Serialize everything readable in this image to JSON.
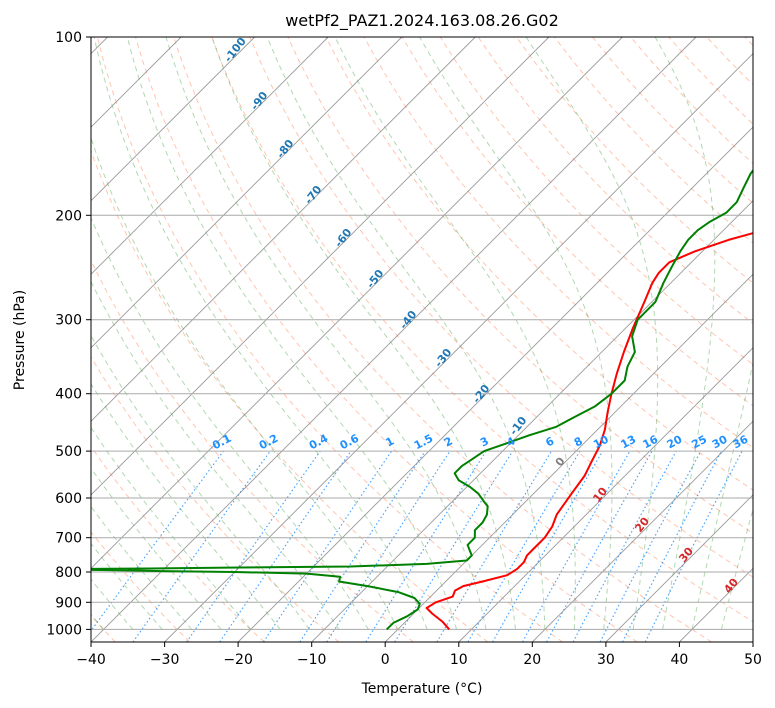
{
  "chart_data": {
    "type": "line",
    "title": "wetPf2_PAZ1.2024.163.08.26.G02",
    "xlabel": "Temperature (°C)",
    "ylabel": "Pressure (hPa)",
    "xlim": [
      -40,
      50
    ],
    "ylim": [
      1050,
      100
    ],
    "y_scale": "log",
    "grid": true,
    "x_ticks": [
      -40,
      -30,
      -20,
      -10,
      0,
      10,
      20,
      30,
      40,
      50
    ],
    "x_tick_labels": [
      "−40",
      "−30",
      "−20",
      "−10",
      "0",
      "10",
      "20",
      "30",
      "40",
      "50"
    ],
    "y_ticks": [
      1000,
      900,
      800,
      700,
      600,
      500,
      400,
      300,
      200,
      100
    ],
    "y_tick_labels": [
      "1000",
      "900",
      "800",
      "700",
      "600",
      "500",
      "400",
      "300",
      "200",
      "100"
    ],
    "series": [
      {
        "color": "#ff0000",
        "pressure": [
          1000,
          970,
          940,
          920,
          900,
          880,
          860,
          845,
          830,
          810,
          790,
          770,
          750,
          730,
          700,
          670,
          640,
          610,
          580,
          550,
          520,
          490,
          460,
          430,
          400,
          370,
          340,
          310,
          280,
          260,
          250,
          240,
          230,
          220,
          213,
          205,
          197,
          190,
          180,
          172,
          165,
          155,
          145,
          135,
          125,
          115,
          108,
          100
        ],
        "temperature": [
          7,
          5,
          2.5,
          1,
          1.5,
          3,
          2.5,
          3,
          5,
          7.5,
          8,
          8,
          7.5,
          7.5,
          7.5,
          7,
          6,
          5.5,
          5,
          4.5,
          3.5,
          2.5,
          1,
          -1,
          -3,
          -5,
          -7,
          -9,
          -11,
          -12.5,
          -13,
          -13,
          -11,
          -8,
          -5,
          -2,
          0,
          1,
          2,
          2.5,
          4.5,
          6.5,
          9.5,
          13.5,
          17.5,
          21,
          22,
          23.5
        ]
      },
      {
        "color": "#008000",
        "pressure": [
          1000,
          975,
          950,
          925,
          905,
          885,
          865,
          845,
          830,
          815,
          805,
          800,
          797,
          795,
          793,
          791,
          789,
          786,
          783,
          775,
          765,
          750,
          735,
          720,
          700,
          680,
          660,
          640,
          620,
          605,
          590,
          575,
          560,
          545,
          530,
          515,
          500,
          485,
          470,
          455,
          440,
          420,
          400,
          380,
          360,
          340,
          320,
          300,
          280,
          260,
          245,
          230,
          220,
          212,
          205,
          198,
          190,
          180,
          170,
          160,
          150,
          140,
          130,
          120,
          110,
          100
        ],
        "temperature": [
          -1.5,
          -1.5,
          -0.5,
          0,
          -0.5,
          -2,
          -5,
          -10,
          -14.5,
          -15,
          -20,
          -30,
          -40,
          -45,
          -50,
          -55,
          -42,
          -30,
          -15,
          -5,
          0,
          0,
          -1,
          -2,
          -2,
          -3,
          -3,
          -3.5,
          -4.5,
          -6,
          -7.5,
          -9.5,
          -12,
          -13.5,
          -13.5,
          -13,
          -12.5,
          -10.5,
          -8.5,
          -6,
          -5,
          -3.5,
          -3,
          -3,
          -4.5,
          -5.5,
          -8,
          -9.5,
          -9.5,
          -11,
          -12,
          -13,
          -13.5,
          -13.5,
          -13,
          -12,
          -12,
          -13,
          -14,
          -14.5,
          -13.5,
          -11.5,
          -9.5,
          -6.5,
          -2.5,
          1.5
        ]
      }
    ],
    "background_lines": {
      "isotherms": {
        "color": "#666666",
        "style": "solid"
      },
      "dry_adiabats": {
        "color": "#ff7f50",
        "style": "dashed"
      },
      "moist_adiabats": {
        "color": "#228b22",
        "style": "dashed"
      },
      "mixing_ratio": {
        "color": "#1e90ff",
        "style": "dotted"
      }
    },
    "mixing_ratio_labels": [
      "0.1",
      "0.2",
      "0.4",
      "0.6",
      "1",
      "1.5",
      "2",
      "3",
      "4",
      "6",
      "8",
      "10",
      "13",
      "16",
      "20",
      "25",
      "30",
      "36"
    ],
    "moist_adiabat_labels_cold": [
      "-100",
      "-90",
      "-80",
      "-70",
      "-60",
      "-50",
      "-40",
      "-30",
      "-20",
      "-10"
    ],
    "moist_adiabat_labels_warm": [
      "0",
      "10",
      "20",
      "30",
      "40"
    ]
  }
}
